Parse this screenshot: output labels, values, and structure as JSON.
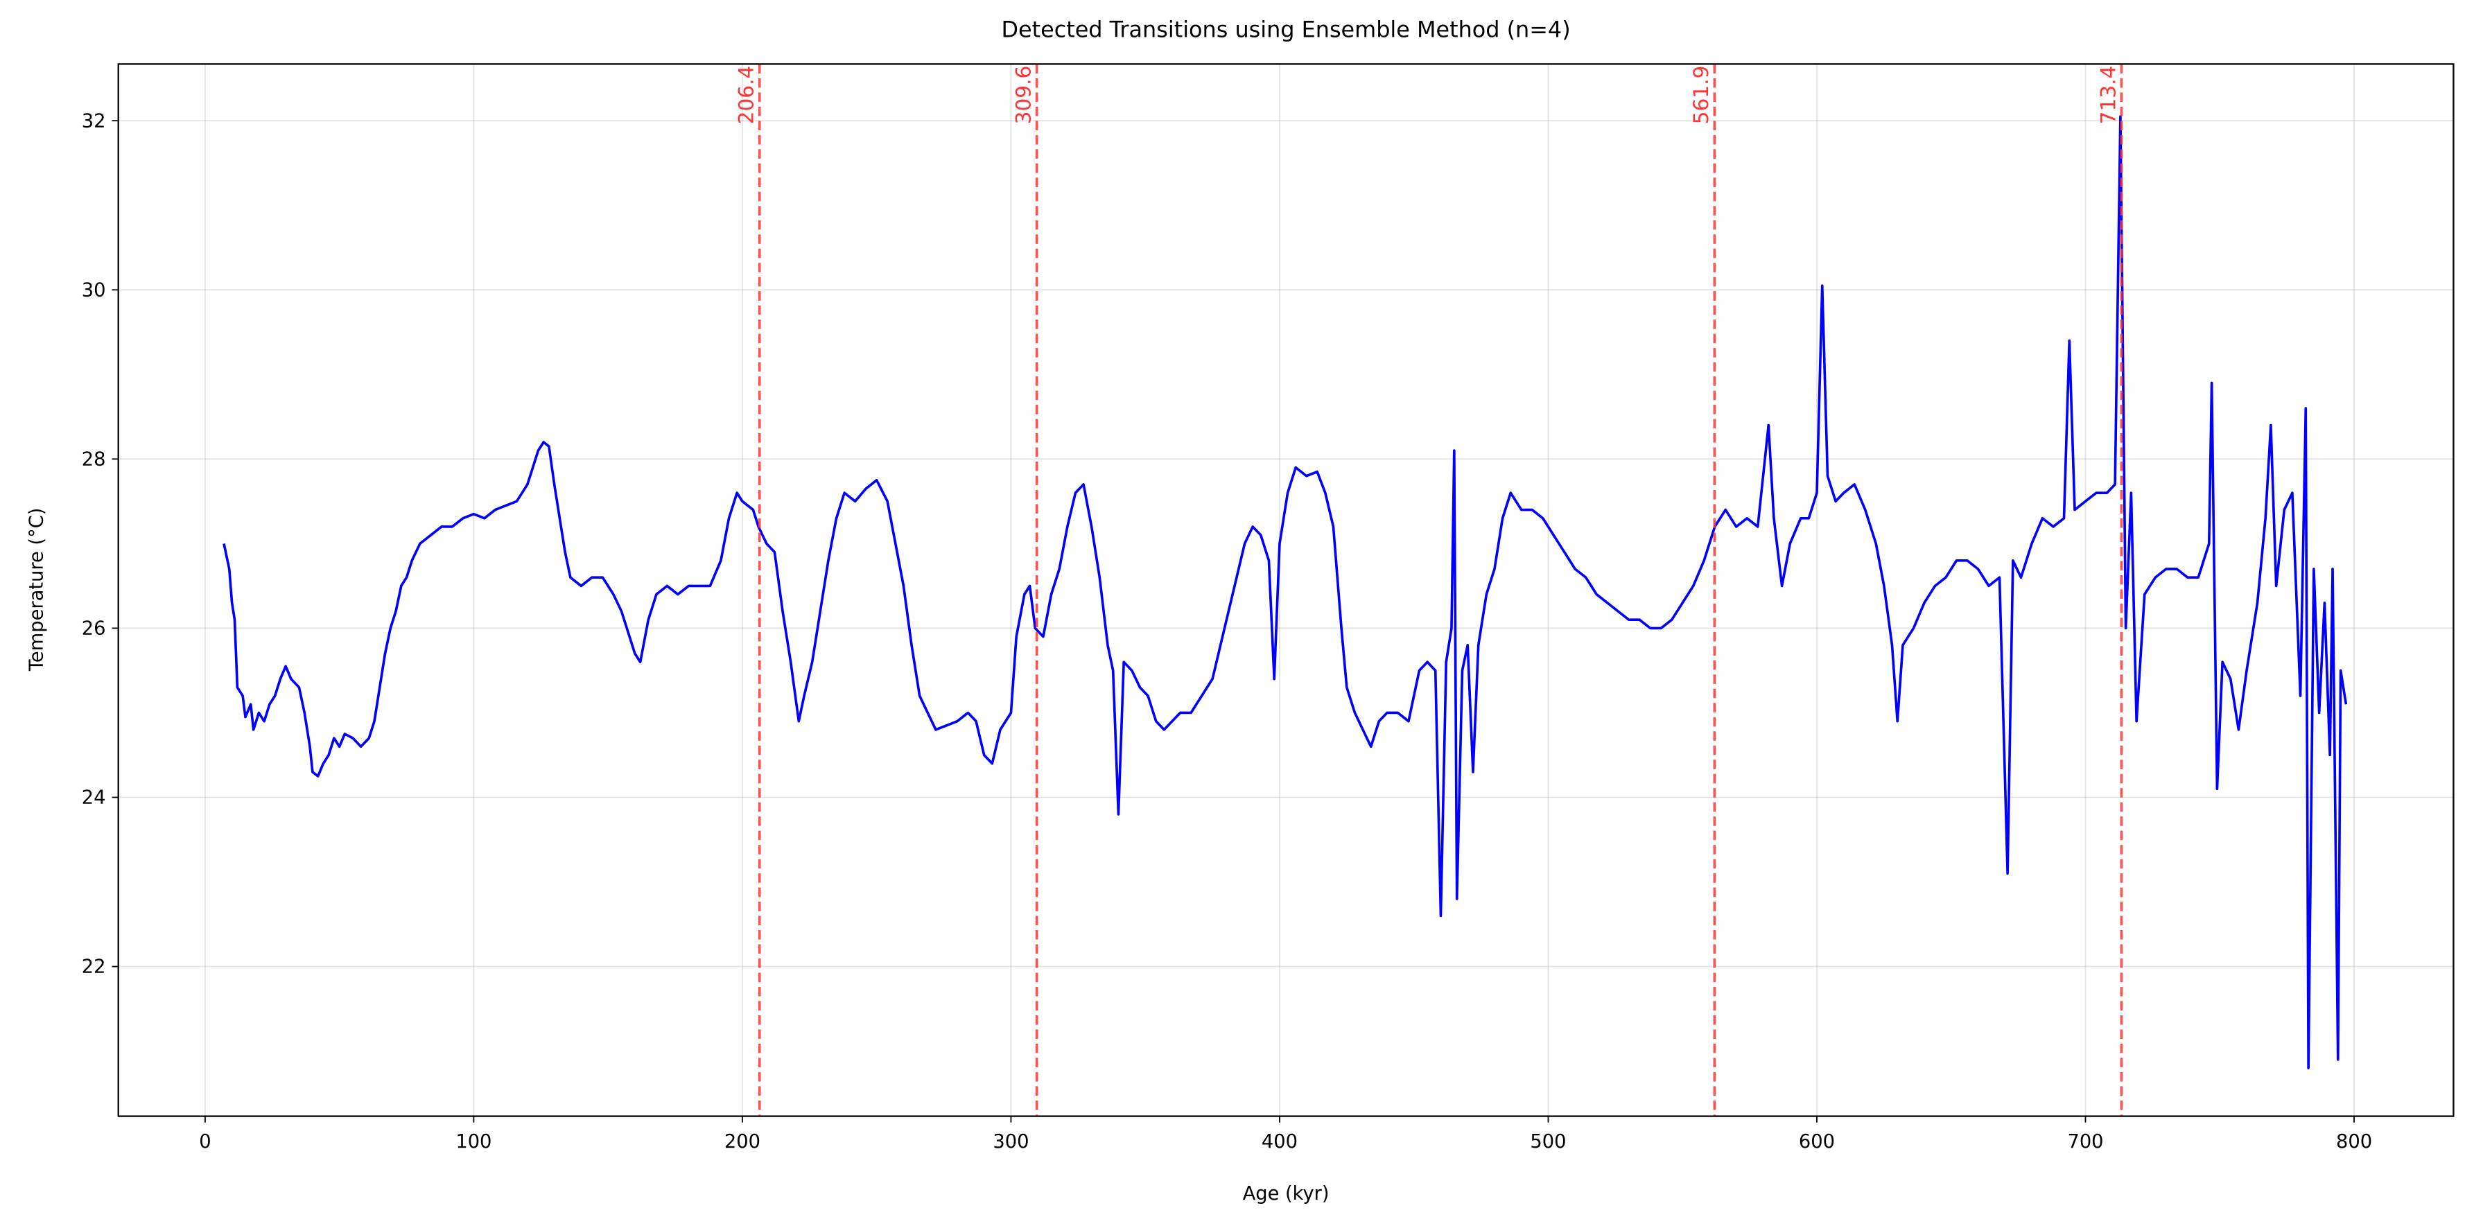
{
  "chart_data": {
    "type": "line",
    "title": "Detected Transitions using Ensemble Method (n=4)",
    "xlabel": "Age (kyr)",
    "ylabel": "Temperature (°C)",
    "xlim": [
      -32.3,
      837
    ],
    "ylim": [
      20.23,
      32.67
    ],
    "xticks": [
      0,
      100,
      200,
      300,
      400,
      500,
      600,
      700,
      800
    ],
    "yticks": [
      22,
      24,
      26,
      28,
      30,
      32
    ],
    "grid": true,
    "transition_color": "#ff3333",
    "transitions": [
      206.4,
      309.6,
      561.9,
      713.4
    ],
    "x": [
      7,
      9,
      10,
      11,
      12,
      14,
      15,
      17,
      18,
      20,
      22,
      24,
      26,
      28,
      30,
      32,
      35,
      37,
      39,
      40,
      42,
      44,
      46,
      48,
      50,
      52,
      55,
      58,
      61,
      63,
      65,
      67,
      69,
      71,
      73,
      75,
      77,
      80,
      84,
      88,
      92,
      96,
      100,
      104,
      108,
      112,
      116,
      120,
      124,
      126,
      128,
      130,
      132,
      134,
      136,
      140,
      144,
      148,
      152,
      155,
      158,
      160,
      162,
      165,
      168,
      172,
      176,
      180,
      184,
      188,
      192,
      195,
      198,
      200,
      204,
      206,
      209,
      212,
      215,
      218,
      221,
      223,
      226,
      229,
      232,
      235,
      238,
      242,
      246,
      250,
      254,
      257,
      260,
      263,
      266,
      269,
      272,
      276,
      280,
      284,
      287,
      290,
      293,
      296,
      300,
      302,
      305,
      307,
      309,
      312,
      315,
      318,
      321,
      324,
      327,
      330,
      333,
      336,
      338,
      340,
      342,
      345,
      348,
      351,
      354,
      357,
      360,
      363,
      367,
      371,
      375,
      378,
      381,
      384,
      387,
      390,
      393,
      396,
      398,
      400,
      403,
      406,
      410,
      414,
      417,
      420,
      423,
      425,
      428,
      431,
      434,
      437,
      440,
      444,
      448,
      452,
      455,
      458,
      460,
      462,
      464,
      465,
      466,
      468,
      470,
      472,
      474,
      477,
      480,
      483,
      486,
      490,
      494,
      498,
      502,
      506,
      510,
      514,
      518,
      522,
      526,
      530,
      534,
      538,
      542,
      546,
      550,
      554,
      558,
      562,
      566,
      570,
      574,
      578,
      582,
      584,
      587,
      590,
      594,
      597,
      600,
      602,
      604,
      607,
      610,
      614,
      618,
      622,
      625,
      628,
      630,
      632,
      636,
      640,
      644,
      648,
      652,
      656,
      660,
      664,
      668,
      671,
      673,
      676,
      680,
      684,
      688,
      692,
      694,
      696,
      700,
      704,
      708,
      711,
      713,
      715,
      717,
      719,
      722,
      726,
      730,
      734,
      738,
      742,
      746,
      747,
      749,
      751,
      754,
      757,
      760,
      764,
      767,
      769,
      771,
      774,
      777,
      780,
      782,
      783,
      785,
      787,
      789,
      791,
      792,
      794,
      795,
      797
    ],
    "series": [
      {
        "color": "#0000ff",
        "values": [
          27.0,
          26.7,
          26.3,
          26.1,
          25.3,
          25.2,
          24.95,
          25.1,
          24.8,
          25.0,
          24.9,
          25.1,
          25.2,
          25.4,
          25.55,
          25.4,
          25.3,
          25.0,
          24.6,
          24.3,
          24.25,
          24.4,
          24.5,
          24.7,
          24.6,
          24.75,
          24.7,
          24.6,
          24.7,
          24.9,
          25.3,
          25.7,
          26.0,
          26.2,
          26.5,
          26.6,
          26.8,
          27.0,
          27.1,
          27.2,
          27.2,
          27.3,
          27.35,
          27.3,
          27.4,
          27.45,
          27.5,
          27.7,
          28.1,
          28.2,
          28.15,
          27.7,
          27.3,
          26.9,
          26.6,
          26.5,
          26.6,
          26.6,
          26.4,
          26.2,
          25.9,
          25.7,
          25.6,
          26.1,
          26.4,
          26.5,
          26.4,
          26.5,
          26.5,
          26.5,
          26.8,
          27.3,
          27.6,
          27.5,
          27.4,
          27.2,
          27.0,
          26.9,
          26.2,
          25.6,
          24.9,
          25.2,
          25.6,
          26.2,
          26.8,
          27.3,
          27.6,
          27.5,
          27.65,
          27.75,
          27.5,
          27.0,
          26.5,
          25.8,
          25.2,
          25.0,
          24.8,
          24.85,
          24.9,
          25.0,
          24.9,
          24.5,
          24.4,
          24.8,
          25.0,
          25.9,
          26.4,
          26.5,
          26.0,
          25.9,
          26.4,
          26.7,
          27.2,
          27.6,
          27.7,
          27.2,
          26.6,
          25.8,
          25.5,
          23.8,
          25.6,
          25.5,
          25.3,
          25.2,
          24.9,
          24.8,
          24.9,
          25.0,
          25.0,
          25.2,
          25.4,
          25.8,
          26.2,
          26.6,
          27.0,
          27.2,
          27.1,
          26.8,
          25.4,
          27.0,
          27.6,
          27.9,
          27.8,
          27.85,
          27.6,
          27.2,
          26.0,
          25.3,
          25.0,
          24.8,
          24.6,
          24.9,
          25.0,
          25.0,
          24.9,
          25.5,
          25.6,
          25.5,
          22.6,
          25.6,
          26.0,
          28.1,
          22.8,
          25.5,
          25.8,
          24.3,
          25.8,
          26.4,
          26.7,
          27.3,
          27.6,
          27.4,
          27.4,
          27.3,
          27.1,
          26.9,
          26.7,
          26.6,
          26.4,
          26.3,
          26.2,
          26.1,
          26.1,
          26.0,
          26.0,
          26.1,
          26.3,
          26.5,
          26.8,
          27.2,
          27.4,
          27.2,
          27.3,
          27.2,
          28.4,
          27.3,
          26.5,
          27.0,
          27.3,
          27.3,
          27.6,
          30.05,
          27.8,
          27.5,
          27.6,
          27.7,
          27.4,
          27.0,
          26.5,
          25.8,
          24.9,
          25.8,
          26.0,
          26.3,
          26.5,
          26.6,
          26.8,
          26.8,
          26.7,
          26.5,
          26.6,
          23.1,
          26.8,
          26.6,
          27.0,
          27.3,
          27.2,
          27.3,
          29.4,
          27.4,
          27.5,
          27.6,
          27.6,
          27.7,
          32.05,
          26.0,
          27.6,
          24.9,
          26.4,
          26.6,
          26.7,
          26.7,
          26.6,
          26.6,
          27.0,
          28.9,
          24.1,
          25.6,
          25.4,
          24.8,
          25.5,
          26.3,
          27.3,
          28.4,
          26.5,
          27.4,
          27.6,
          25.2,
          28.6,
          20.8,
          26.7,
          25.0,
          26.3,
          24.5,
          26.7,
          20.9,
          25.5,
          25.1
        ]
      }
    ]
  }
}
